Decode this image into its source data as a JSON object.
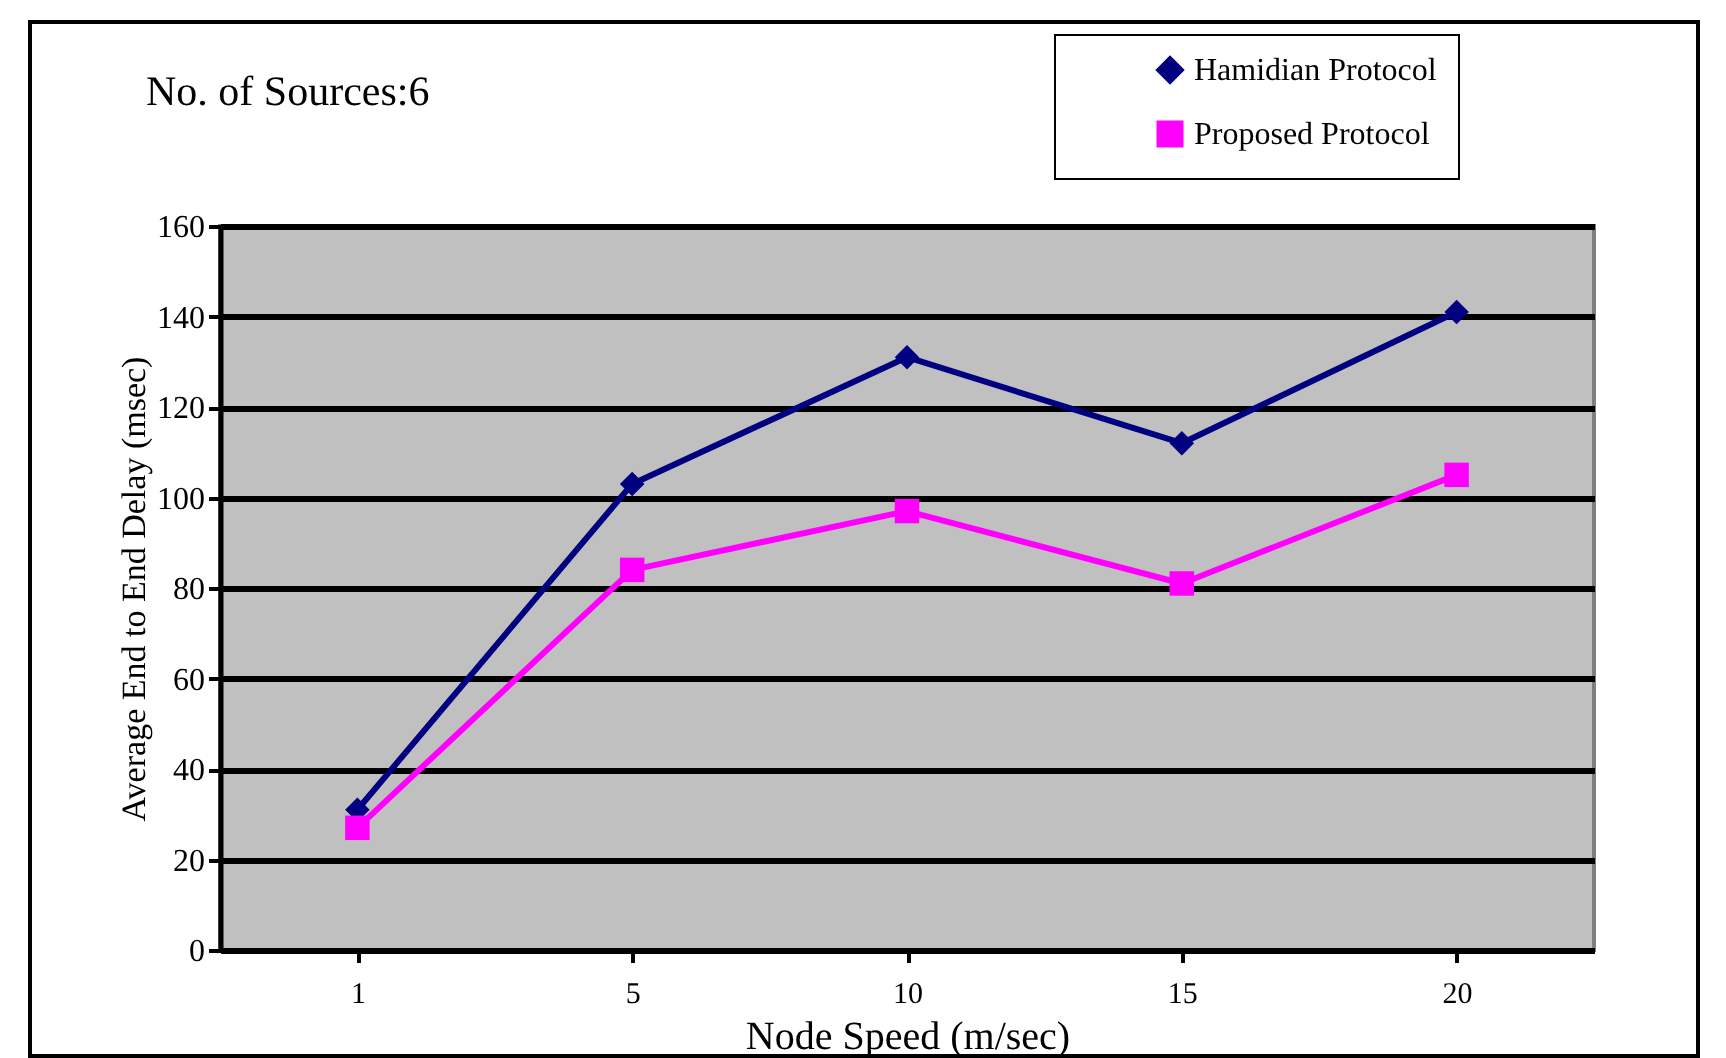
{
  "chart_data": {
    "type": "line",
    "title": "No. of Sources:6",
    "xlabel": "Node Speed (m/sec)",
    "ylabel": "Average End to End Delay (msec)",
    "categories": [
      "1",
      "5",
      "10",
      "15",
      "20"
    ],
    "series": [
      {
        "name": "Hamidian Protocol",
        "color": "#000080",
        "marker": "diamond",
        "values": [
          31,
          103,
          131,
          112,
          141
        ]
      },
      {
        "name": "Proposed  Protocol",
        "color": "#ff00ff",
        "marker": "square",
        "values": [
          27,
          84,
          97,
          81,
          105
        ]
      }
    ],
    "ylim": [
      0,
      160
    ],
    "yticks": [
      0,
      20,
      40,
      60,
      80,
      100,
      120,
      140,
      160
    ],
    "grid": "y",
    "legend": "top right"
  }
}
